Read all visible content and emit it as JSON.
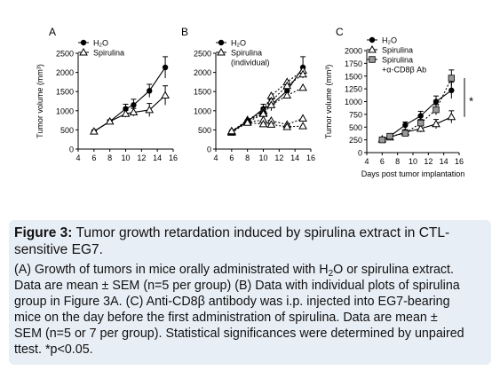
{
  "caption": {
    "label": "Figure 3:",
    "title_rest": " Tumor growth retardation induced by spirulina extract in CTL-sensitive EG7.",
    "line_a1_pre": "(A) Growth of tumors in mice orally administrated with H",
    "line_a1_sub": "2",
    "line_a1_post": "O or spirulina extract.",
    "line_a2": "Data are mean ± SEM (n=5 per group) (B) Data with individual plots of spirulina",
    "line_a3": "group in Figure 3A. (C) Anti-CD8β antibody was i.p. injected into EG7-bearing",
    "line_a4": "mice on the day before the first administration of spirulina. Data are mean ±",
    "line_a5": "SEM (n=5 or 7 per group). Statistical significances were determined by unpaired",
    "line_a6": "ttest. *p<0.05."
  },
  "chart_data": [
    {
      "panel": "A",
      "type": "line",
      "ylabel": "Tumor volume (mm³)",
      "xlabel": "",
      "xlim": [
        4,
        16
      ],
      "ylim": [
        0,
        2500
      ],
      "xticks": [
        4,
        6,
        8,
        10,
        12,
        14,
        16
      ],
      "yticks": [
        0,
        500,
        1000,
        1500,
        2000,
        2500
      ],
      "legend": "top-left",
      "series": [
        {
          "name": "H₂O",
          "marker": "circle-filled",
          "style": "solid",
          "points": [
            [
              6,
              460
            ],
            [
              8,
              720
            ],
            [
              10,
              1050
            ],
            [
              11,
              1150
            ],
            [
              13,
              1520
            ],
            [
              15,
              2130
            ]
          ],
          "err": [
            0,
            40,
            120,
            150,
            170,
            280
          ]
        },
        {
          "name": "Spirulina",
          "marker": "triangle-open",
          "style": "solid",
          "points": [
            [
              6,
              460
            ],
            [
              8,
              720
            ],
            [
              10,
              920
            ],
            [
              11,
              960
            ],
            [
              13,
              1020
            ],
            [
              15,
              1400
            ]
          ],
          "err": [
            0,
            40,
            90,
            100,
            170,
            250
          ]
        }
      ]
    },
    {
      "panel": "B",
      "type": "line",
      "ylabel": "",
      "xlabel": "",
      "xlim": [
        4,
        16
      ],
      "ylim": [
        0,
        2500
      ],
      "xticks": [
        4,
        6,
        8,
        10,
        12,
        14,
        16
      ],
      "yticks": [
        0,
        500,
        1000,
        1500,
        2000,
        2500
      ],
      "legend": "top-left",
      "legend_entries": [
        "H₂O",
        "Spirulina",
        "(individual)"
      ],
      "series": [
        {
          "name": "H₂O",
          "marker": "circle-filled",
          "style": "solid",
          "points": [
            [
              6,
              460
            ],
            [
              8,
              720
            ],
            [
              10,
              1050
            ],
            [
              11,
              1150
            ],
            [
              13,
              1520
            ],
            [
              15,
              2130
            ]
          ],
          "err": [
            0,
            40,
            120,
            150,
            170,
            280
          ]
        },
        {
          "name": "Spirulina",
          "marker": "triangle-open",
          "style": "dashed",
          "points": [
            [
              6,
              450
            ],
            [
              8,
              760
            ],
            [
              10,
              1000
            ],
            [
              11,
              1390
            ],
            [
              13,
              1750
            ],
            [
              15,
              2050
            ]
          ],
          "err": []
        },
        {
          "name": "Spirulina",
          "marker": "triangle-open",
          "style": "dashed",
          "points": [
            [
              6,
              470
            ],
            [
              8,
              740
            ],
            [
              10,
              950
            ],
            [
              11,
              1250
            ],
            [
              13,
              1650
            ],
            [
              15,
              1950
            ]
          ],
          "err": []
        },
        {
          "name": "Spirulina",
          "marker": "triangle-open",
          "style": "dashed",
          "points": [
            [
              6,
              430
            ],
            [
              8,
              700
            ],
            [
              10,
              920
            ],
            [
              11,
              1150
            ],
            [
              13,
              1400
            ],
            [
              15,
              1600
            ]
          ],
          "err": []
        },
        {
          "name": "Spirulina",
          "marker": "triangle-open",
          "style": "dashed",
          "points": [
            [
              6,
              450
            ],
            [
              8,
              700
            ],
            [
              10,
              760
            ],
            [
              11,
              740
            ],
            [
              13,
              640
            ],
            [
              15,
              800
            ]
          ],
          "err": []
        },
        {
          "name": "Spirulina",
          "marker": "triangle-open",
          "style": "dashed",
          "points": [
            [
              6,
              470
            ],
            [
              8,
              690
            ],
            [
              10,
              650
            ],
            [
              11,
              640
            ],
            [
              13,
              580
            ],
            [
              15,
              600
            ]
          ],
          "err": []
        }
      ]
    },
    {
      "panel": "C",
      "type": "line",
      "ylabel": "Tumor volume (mm³)",
      "xlabel": "Days post tumor implantation",
      "xlim": [
        4,
        16
      ],
      "ylim": [
        0,
        2000
      ],
      "xticks": [
        4,
        6,
        8,
        10,
        12,
        14,
        16
      ],
      "yticks": [
        0,
        250,
        500,
        750,
        1000,
        1250,
        1500,
        1750,
        2000
      ],
      "legend": "top-left",
      "legend_entries": [
        "H₂O",
        "Spirulina",
        "Spirulina",
        "+α-CD8β Ab"
      ],
      "annotation": "*",
      "series": [
        {
          "name": "H₂O",
          "marker": "circle-filled",
          "style": "solid",
          "points": [
            [
              6,
              260
            ],
            [
              7,
              320
            ],
            [
              9,
              540
            ],
            [
              11,
              720
            ],
            [
              13,
              1000
            ],
            [
              15,
              1220
            ]
          ],
          "err": [
            30,
            40,
            60,
            90,
            110,
            160
          ]
        },
        {
          "name": "Spirulina",
          "marker": "triangle-open",
          "style": "solid",
          "points": [
            [
              6,
              260
            ],
            [
              7,
              300
            ],
            [
              9,
              400
            ],
            [
              11,
              470
            ],
            [
              13,
              560
            ],
            [
              15,
              700
            ]
          ],
          "err": [
            30,
            40,
            50,
            70,
            90,
            120
          ]
        },
        {
          "name": "Spirulina +α-CD8β Ab",
          "marker": "square-filled-gray",
          "style": "dashed",
          "points": [
            [
              6,
              250
            ],
            [
              7,
              320
            ],
            [
              9,
              380
            ],
            [
              11,
              580
            ],
            [
              13,
              840
            ],
            [
              15,
              1460
            ]
          ],
          "err": [
            30,
            40,
            50,
            70,
            100,
            160
          ]
        }
      ]
    }
  ],
  "shared_xlabel": "Days post tumor implantation"
}
